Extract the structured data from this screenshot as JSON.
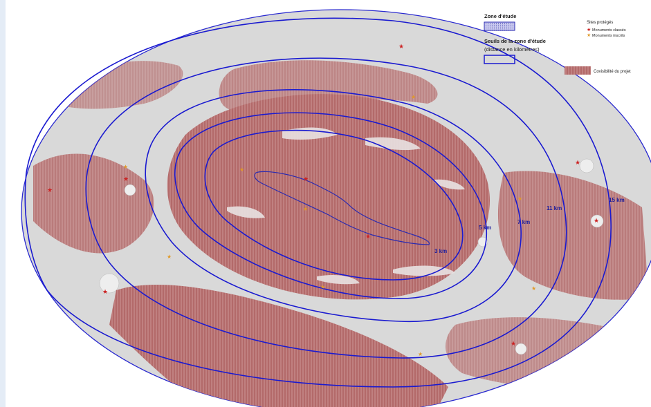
{
  "map": {
    "zone_labels": [
      "3 km",
      "5 km",
      "7 km",
      "11 km",
      "15 km"
    ]
  },
  "legend": {
    "zone_etude_label": "Zone d'étude",
    "seuils_label_line1": "Seuils de la zone d'étude",
    "seuils_label_line2": "(distance en kilomètres)",
    "sites_title": "Sites protégés",
    "monuments_classes": "Monuments classés",
    "monuments_inscrits": "Monuments inscrits",
    "covisibilite": "Covisibilité du projet"
  },
  "colors": {
    "covisibility_fill": "#b36a6a",
    "ring_stroke": "#1a1ad0",
    "monument_classe": "#cc2222",
    "monument_inscrit": "#e09a2a",
    "basemap": "#d9d9d9"
  }
}
